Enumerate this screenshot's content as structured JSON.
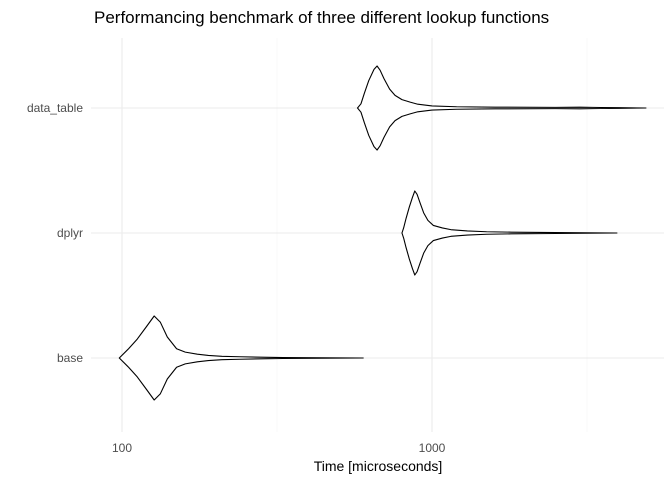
{
  "chart_data": {
    "type": "violin",
    "title": "Performancing benchmark of three different lookup functions",
    "xlabel": "Time [microseconds]",
    "ylabel": "",
    "x_scale": "log10",
    "xlim": [
      80,
      5500
    ],
    "x_ticks": [
      100,
      1000
    ],
    "x_tick_labels": [
      "100",
      "1000"
    ],
    "categories": [
      "data_table",
      "dplyr",
      "base"
    ],
    "grid": true,
    "series": [
      {
        "category": "data_table",
        "min": 575,
        "max": 4900,
        "profile": [
          [
            575,
            0.0
          ],
          [
            590,
            0.1
          ],
          [
            605,
            0.35
          ],
          [
            625,
            0.65
          ],
          [
            650,
            0.92
          ],
          [
            665,
            1.0
          ],
          [
            680,
            0.9
          ],
          [
            700,
            0.7
          ],
          [
            730,
            0.45
          ],
          [
            760,
            0.3
          ],
          [
            800,
            0.2
          ],
          [
            850,
            0.14
          ],
          [
            900,
            0.09
          ],
          [
            1000,
            0.05
          ],
          [
            1200,
            0.03
          ],
          [
            1600,
            0.02
          ],
          [
            2500,
            0.015
          ],
          [
            3000,
            0.02
          ],
          [
            3300,
            0.015
          ],
          [
            3500,
            0.012
          ],
          [
            4000,
            0.008
          ],
          [
            4900,
            0.0
          ]
        ]
      },
      {
        "category": "dplyr",
        "min": 800,
        "max": 3950,
        "profile": [
          [
            800,
            0.0
          ],
          [
            810,
            0.12
          ],
          [
            825,
            0.35
          ],
          [
            845,
            0.62
          ],
          [
            865,
            0.85
          ],
          [
            880,
            1.0
          ],
          [
            895,
            0.92
          ],
          [
            915,
            0.72
          ],
          [
            940,
            0.48
          ],
          [
            970,
            0.3
          ],
          [
            1010,
            0.18
          ],
          [
            1080,
            0.12
          ],
          [
            1150,
            0.08
          ],
          [
            1300,
            0.05
          ],
          [
            1500,
            0.03
          ],
          [
            1800,
            0.02
          ],
          [
            2500,
            0.01
          ],
          [
            3950,
            0.0
          ]
        ]
      },
      {
        "category": "base",
        "min": 98,
        "max": 600,
        "profile": [
          [
            98,
            0.0
          ],
          [
            105,
            0.22
          ],
          [
            112,
            0.45
          ],
          [
            120,
            0.75
          ],
          [
            127,
            1.0
          ],
          [
            133,
            0.85
          ],
          [
            140,
            0.5
          ],
          [
            150,
            0.22
          ],
          [
            160,
            0.14
          ],
          [
            175,
            0.09
          ],
          [
            190,
            0.06
          ],
          [
            210,
            0.04
          ],
          [
            240,
            0.03
          ],
          [
            280,
            0.02
          ],
          [
            330,
            0.01
          ],
          [
            600,
            0.0
          ]
        ]
      }
    ]
  }
}
